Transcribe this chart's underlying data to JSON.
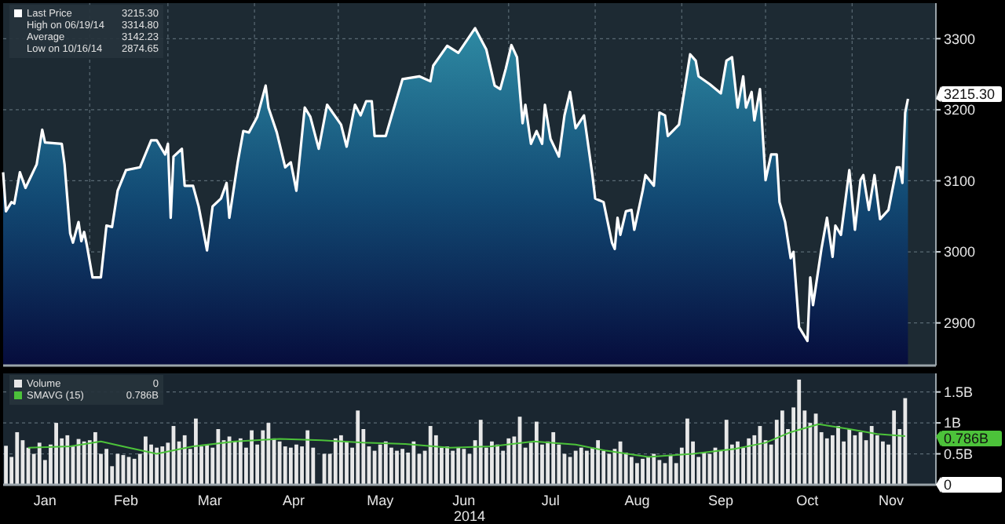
{
  "chart_data": [
    {
      "type": "area",
      "series": [
        {
          "name": "Last Price",
          "color": "#ffffff",
          "x": [
            "2014-01-01",
            "2014-01-02",
            "2014-01-04",
            "2014-01-05",
            "2014-01-07",
            "2014-01-09",
            "2014-01-13",
            "2014-01-15",
            "2014-01-16",
            "2014-01-22",
            "2014-01-23",
            "2014-01-25",
            "2014-01-26",
            "2014-01-28",
            "2014-01-29",
            "2014-01-30",
            "2014-01-31",
            "2014-02-02",
            "2014-02-05",
            "2014-02-07",
            "2014-02-09",
            "2014-02-11",
            "2014-02-14",
            "2014-02-19",
            "2014-02-23",
            "2014-02-25",
            "2014-02-28",
            "2014-03-01",
            "2014-03-02",
            "2014-03-03",
            "2014-03-06",
            "2014-03-07",
            "2014-03-10",
            "2014-03-12",
            "2014-03-15",
            "2014-03-17",
            "2014-03-20",
            "2014-03-22",
            "2014-03-23",
            "2014-03-26",
            "2014-03-28",
            "2014-03-30",
            "2014-04-02",
            "2014-04-05",
            "2014-04-06",
            "2014-04-09",
            "2014-04-12",
            "2014-04-14",
            "2014-04-16",
            "2014-04-19",
            "2014-04-21",
            "2014-04-24",
            "2014-04-27",
            "2014-05-02",
            "2014-05-04",
            "2014-05-07",
            "2014-05-09",
            "2014-05-11",
            "2014-05-13",
            "2014-05-14",
            "2014-05-18",
            "2014-05-20",
            "2014-05-24",
            "2014-05-30",
            "2014-06-03",
            "2014-06-04",
            "2014-06-09",
            "2014-06-13",
            "2014-06-19",
            "2014-06-23",
            "2014-06-26",
            "2014-06-28",
            "2014-06-30",
            "2014-07-02",
            "2014-07-04",
            "2014-07-06",
            "2014-07-07",
            "2014-07-09",
            "2014-07-11",
            "2014-07-13",
            "2014-07-14",
            "2014-07-16",
            "2014-07-19",
            "2014-07-21",
            "2014-07-23",
            "2014-07-25",
            "2014-07-28",
            "2014-07-31",
            "2014-08-01",
            "2014-08-04",
            "2014-08-07",
            "2014-08-08",
            "2014-08-09",
            "2014-08-10",
            "2014-08-12",
            "2014-08-14",
            "2014-08-15",
            "2014-08-18",
            "2014-08-19",
            "2014-08-22",
            "2014-08-24",
            "2014-08-26",
            "2014-08-27",
            "2014-08-31",
            "2014-09-04",
            "2014-09-06",
            "2014-09-07",
            "2014-09-11",
            "2014-09-15",
            "2014-09-17",
            "2014-09-19",
            "2014-09-21",
            "2014-09-23",
            "2014-09-24",
            "2014-09-26",
            "2014-09-27",
            "2014-09-29",
            "2014-10-01",
            "2014-10-03",
            "2014-10-05",
            "2014-10-06",
            "2014-10-08",
            "2014-10-10",
            "2014-10-11",
            "2014-10-13",
            "2014-10-16",
            "2014-10-17",
            "2014-10-18",
            "2014-10-21",
            "2014-10-23",
            "2014-10-25",
            "2014-10-26",
            "2014-10-28",
            "2014-10-31",
            "2014-11-02",
            "2014-11-04",
            "2014-11-05",
            "2014-11-07",
            "2014-11-09",
            "2014-11-11",
            "2014-11-14",
            "2014-11-17",
            "2014-11-18",
            "2014-11-19",
            "2014-11-20",
            "2014-11-21"
          ],
          "values": [
            3112,
            3057,
            3070,
            3068,
            3112,
            3090,
            3123,
            3172,
            3154,
            3152,
            3123,
            3026,
            3013,
            3042,
            3015,
            3028,
            3009,
            2964,
            2964,
            3037,
            3035,
            3086,
            3115,
            3119,
            3157,
            3157,
            3137,
            3152,
            3048,
            3134,
            3145,
            3093,
            3093,
            3064,
            3002,
            3064,
            3075,
            3097,
            3048,
            3126,
            3170,
            3168,
            3190,
            3234,
            3203,
            3168,
            3119,
            3126,
            3086,
            3203,
            3190,
            3145,
            3207,
            3179,
            3148,
            3207,
            3192,
            3212,
            3212,
            3163,
            3163,
            3190,
            3243,
            3247,
            3240,
            3262,
            3290,
            3280,
            3314.8,
            3285,
            3234,
            3229,
            3258,
            3291,
            3274,
            3181,
            3207,
            3152,
            3170,
            3152,
            3207,
            3159,
            3134,
            3192,
            3225,
            3174,
            3192,
            3108,
            3075,
            3070,
            3013,
            3004,
            3048,
            3024,
            3057,
            3059,
            3031,
            3086,
            3108,
            3093,
            3196,
            3192,
            3163,
            3179,
            3278,
            3269,
            3247,
            3236,
            3223,
            3269,
            3274,
            3203,
            3247,
            3203,
            3225,
            3185,
            3229,
            3101,
            3137,
            3137,
            3070,
            3042,
            2991,
            3000,
            2894,
            2874.65,
            2964,
            2925,
            3004,
            3048,
            2993,
            3037,
            3024,
            3115,
            3031,
            3101,
            3108,
            3059,
            3108,
            3046,
            3059,
            3119,
            3119,
            3097,
            3196,
            3215.3
          ]
        }
      ],
      "xlim": [
        "2014-01-01",
        "2014-12-01"
      ],
      "xticks": [
        {
          "value": "2014-02-01",
          "label": null
        },
        {
          "value": "2014-03-01",
          "label": null
        },
        {
          "value": "2014-04-01",
          "label": null
        },
        {
          "value": "2014-05-01",
          "label": null
        },
        {
          "value": "2014-06-01",
          "label": null
        },
        {
          "value": "2014-07-01",
          "label": null
        },
        {
          "value": "2014-08-01",
          "label": null
        },
        {
          "value": "2014-09-01",
          "label": null
        },
        {
          "value": "2014-10-01",
          "label": null
        },
        {
          "value": "2014-11-01",
          "label": null
        }
      ],
      "ylim": [
        2840,
        3350
      ],
      "yticks": [
        2900,
        3000,
        3100,
        3200,
        3300
      ],
      "tick_labels": "y",
      "grid": true,
      "legend": "top left",
      "annotations": [
        "3215.30",
        "High on 06/19/14",
        "3314.80",
        "Average",
        "3142.23",
        "Low on 10/16/14",
        "2874.65",
        {
          "text": "3215.30",
          "x": "2014-11-21",
          "y": 3215.3
        }
      ]
    },
    {
      "type": "bar",
      "series": [
        {
          "name": "Volume",
          "color": "#e8e8e8",
          "x": [
            "2014-01-02",
            "2014-01-04",
            "2014-01-06",
            "2014-01-08",
            "2014-01-10",
            "2014-01-12",
            "2014-01-14",
            "2014-01-16",
            "2014-01-18",
            "2014-01-20",
            "2014-01-22",
            "2014-01-24",
            "2014-01-26",
            "2014-01-28",
            "2014-01-30",
            "2014-02-01",
            "2014-02-03",
            "2014-02-05",
            "2014-02-07",
            "2014-02-09",
            "2014-02-11",
            "2014-02-13",
            "2014-02-15",
            "2014-02-17",
            "2014-02-19",
            "2014-02-21",
            "2014-02-23",
            "2014-02-25",
            "2014-02-27",
            "2014-03-01",
            "2014-03-03",
            "2014-03-05",
            "2014-03-07",
            "2014-03-09",
            "2014-03-11",
            "2014-03-13",
            "2014-03-15",
            "2014-03-17",
            "2014-03-19",
            "2014-03-21",
            "2014-03-23",
            "2014-03-25",
            "2014-03-27",
            "2014-03-29",
            "2014-03-31",
            "2014-04-02",
            "2014-04-04",
            "2014-04-06",
            "2014-04-08",
            "2014-04-10",
            "2014-04-12",
            "2014-04-14",
            "2014-04-16",
            "2014-04-18",
            "2014-04-20",
            "2014-04-22",
            "2014-04-24",
            "2014-04-26",
            "2014-04-28",
            "2014-04-30",
            "2014-05-02",
            "2014-05-04",
            "2014-05-06",
            "2014-05-08",
            "2014-05-10",
            "2014-05-12",
            "2014-05-14",
            "2014-05-16",
            "2014-05-18",
            "2014-05-20",
            "2014-05-22",
            "2014-05-24",
            "2014-05-26",
            "2014-05-28",
            "2014-05-30",
            "2014-06-01",
            "2014-06-03",
            "2014-06-05",
            "2014-06-07",
            "2014-06-09",
            "2014-06-11",
            "2014-06-13",
            "2014-06-15",
            "2014-06-17",
            "2014-06-19",
            "2014-06-21",
            "2014-06-23",
            "2014-06-25",
            "2014-06-27",
            "2014-06-29",
            "2014-07-01",
            "2014-07-03",
            "2014-07-05",
            "2014-07-07",
            "2014-07-09",
            "2014-07-11",
            "2014-07-13",
            "2014-07-15",
            "2014-07-17",
            "2014-07-19",
            "2014-07-21",
            "2014-07-23",
            "2014-07-25",
            "2014-07-27",
            "2014-07-29",
            "2014-07-31",
            "2014-08-02",
            "2014-08-04",
            "2014-08-06",
            "2014-08-08",
            "2014-08-10",
            "2014-08-12",
            "2014-08-14",
            "2014-08-16",
            "2014-08-18",
            "2014-08-20",
            "2014-08-22",
            "2014-08-24",
            "2014-08-26",
            "2014-08-28",
            "2014-08-30",
            "2014-09-01",
            "2014-09-03",
            "2014-09-05",
            "2014-09-07",
            "2014-09-09",
            "2014-09-11",
            "2014-09-13",
            "2014-09-15",
            "2014-09-17",
            "2014-09-19",
            "2014-09-21",
            "2014-09-23",
            "2014-09-25",
            "2014-09-27",
            "2014-09-29",
            "2014-10-01",
            "2014-10-03",
            "2014-10-05",
            "2014-10-07",
            "2014-10-09",
            "2014-10-11",
            "2014-10-13",
            "2014-10-15",
            "2014-10-17",
            "2014-10-19",
            "2014-10-21",
            "2014-10-23",
            "2014-10-25",
            "2014-10-27",
            "2014-10-29",
            "2014-10-31",
            "2014-11-02",
            "2014-11-04",
            "2014-11-06",
            "2014-11-08",
            "2014-11-10",
            "2014-11-12",
            "2014-11-14",
            "2014-11-16",
            "2014-11-18",
            "2014-11-20"
          ],
          "values": [
            0.63,
            0.45,
            0.85,
            0.72,
            0.6,
            0.5,
            0.68,
            0.4,
            0.65,
            1.0,
            0.75,
            0.8,
            0.62,
            0.74,
            0.7,
            0.72,
            0.85,
            0.5,
            0.58,
            0.3,
            0.5,
            0.48,
            0.45,
            0.42,
            0.5,
            0.78,
            0.65,
            0.6,
            0.62,
            0.68,
            0.95,
            0.7,
            0.8,
            0.58,
            1.07,
            0.62,
            0.65,
            0.6,
            0.9,
            0.72,
            0.78,
            0.7,
            0.75,
            0.6,
            0.88,
            0.65,
            0.88,
            1.0,
            0.75,
            0.7,
            0.62,
            0.6,
            0.65,
            0.62,
            0.88,
            0.6,
            null,
            0.5,
            0.5,
            0.75,
            0.8,
            0.7,
            0.6,
            1.2,
            0.9,
            0.62,
            0.55,
            0.65,
            0.7,
            0.6,
            0.55,
            0.58,
            0.52,
            0.7,
            0.5,
            0.55,
            0.95,
            0.8,
            0.6,
            0.62,
            0.55,
            0.6,
            0.58,
            0.5,
            0.72,
            1.05,
            0.6,
            0.7,
            0.65,
            0.55,
            0.75,
            0.78,
            1.1,
            0.6,
            0.68,
            1.02,
            0.65,
            0.7,
            0.85,
            0.65,
            0.5,
            0.45,
            0.55,
            0.6,
            0.55,
            0.6,
            0.72,
            0.55,
            0.5,
            0.58,
            0.7,
            0.52,
            0.45,
            0.35,
            0.42,
            0.45,
            0.5,
            0.4,
            0.35,
            0.48,
            0.35,
            0.6,
            1.07,
            0.7,
            0.45,
            0.52,
            0.5,
            0.6,
            0.55,
            1.05,
            0.65,
            0.7,
            0.6,
            0.75,
            0.8,
            0.95,
            0.72,
            0.65,
            1.05,
            1.2,
            0.9,
            1.25,
            1.7,
            1.2,
            1.0,
            1.15,
            0.85,
            0.75,
            0.8,
            0.95,
            0.7,
            0.9,
            0.8,
            0.85,
            0.72,
            0.95,
            0.8,
            0.7,
            0.65,
            1.2,
            0.9,
            1.4
          ]
        },
        {
          "name": "SMAVG (15)",
          "type": "line",
          "color": "#4cc23a",
          "x": [
            "2014-01-10",
            "2014-01-25",
            "2014-02-05",
            "2014-02-15",
            "2014-02-25",
            "2014-03-10",
            "2014-03-25",
            "2014-04-10",
            "2014-04-25",
            "2014-05-10",
            "2014-05-25",
            "2014-06-10",
            "2014-06-25",
            "2014-07-10",
            "2014-07-25",
            "2014-08-05",
            "2014-08-20",
            "2014-09-05",
            "2014-09-20",
            "2014-10-01",
            "2014-10-10",
            "2014-10-20",
            "2014-10-31",
            "2014-11-10",
            "2014-11-20"
          ],
          "values": [
            0.6,
            0.62,
            0.7,
            0.6,
            0.5,
            0.62,
            0.7,
            0.74,
            0.72,
            0.68,
            0.66,
            0.6,
            0.62,
            0.7,
            0.65,
            0.55,
            0.45,
            0.5,
            0.58,
            0.68,
            0.85,
            0.98,
            0.9,
            0.82,
            0.786
          ]
        }
      ],
      "xlim": [
        "2014-01-01",
        "2014-12-01"
      ],
      "xticks": [
        {
          "value": "2014-01-16",
          "label": "Jan"
        },
        {
          "value": "2014-02-14",
          "label": "Feb"
        },
        {
          "value": "2014-03-16",
          "label": "Mar"
        },
        {
          "value": "2014-04-15",
          "label": "Apr"
        },
        {
          "value": "2014-05-16",
          "label": "May"
        },
        {
          "value": "2014-06-15",
          "label": "Jun"
        },
        {
          "value": "2014-07-16",
          "label": "Jul"
        },
        {
          "value": "2014-08-16",
          "label": "Aug"
        },
        {
          "value": "2014-09-15",
          "label": "Sep"
        },
        {
          "value": "2014-10-16",
          "label": "Oct"
        },
        {
          "value": "2014-11-15",
          "label": "Nov"
        }
      ],
      "xlabel": "2014",
      "ylim": [
        0,
        1.8
      ],
      "yticks": [
        {
          "value": 0,
          "label": null
        },
        {
          "value": 0.5,
          "label": "0.5B"
        },
        {
          "value": 1,
          "label": "1B"
        },
        {
          "value": 1.5,
          "label": "1.5B"
        }
      ],
      "grid": "y",
      "legend": "top left",
      "annotations": [
        "0",
        "0.786B",
        {
          "text": "0.786B",
          "x": "2014-11-20",
          "y": 0.786
        },
        {
          "text": "0",
          "x": "2014-11-20",
          "y": 0
        }
      ]
    }
  ]
}
